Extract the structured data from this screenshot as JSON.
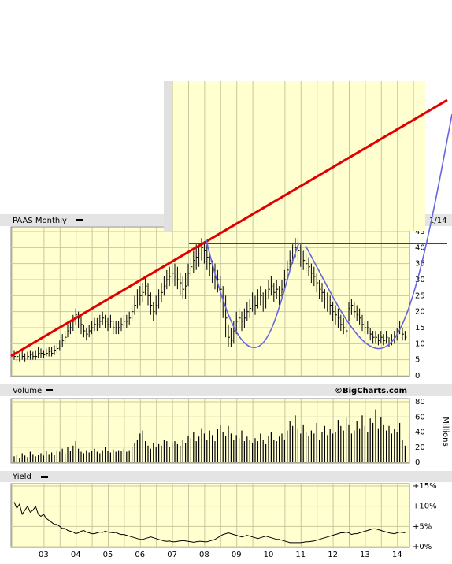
{
  "chart_data": [
    {
      "type": "ohlc",
      "title": "PAAS Monthly",
      "date_label": "1/14",
      "color": "#000000",
      "values": [
        6,
        6,
        5.5,
        6,
        5.5,
        6,
        6.5,
        6,
        6,
        7,
        7,
        6.5,
        7,
        7.5,
        7,
        8,
        8.5,
        9,
        11,
        12,
        14,
        15,
        17,
        19,
        18,
        16,
        14,
        13,
        14,
        15,
        16,
        16,
        17,
        18,
        17,
        16,
        17,
        15,
        15,
        15,
        16,
        17,
        17,
        18,
        20,
        22,
        24,
        25,
        26,
        28,
        25,
        22,
        20,
        22,
        24,
        26,
        28,
        30,
        31,
        32,
        31,
        30,
        29,
        27,
        28,
        32,
        34,
        36,
        37,
        38,
        40,
        39,
        37,
        35,
        33,
        31,
        30,
        27,
        24,
        18,
        12,
        11,
        14,
        17,
        18,
        17,
        18,
        20,
        21,
        23,
        22,
        24,
        25,
        23,
        24,
        27,
        28,
        26,
        27,
        25,
        27,
        30,
        33,
        36,
        38,
        40,
        39,
        38,
        36,
        35,
        34,
        32,
        31,
        29,
        27,
        26,
        24,
        23,
        22,
        20,
        19,
        18,
        16,
        15,
        14,
        21,
        22,
        20,
        19,
        18,
        16,
        15,
        15,
        13,
        12,
        12,
        11,
        12,
        11,
        12,
        10,
        11,
        12,
        13,
        15,
        13,
        12
      ],
      "high": [
        8,
        7.5,
        7,
        8,
        7,
        7.5,
        8,
        7.5,
        8,
        9,
        8.5,
        8,
        8.5,
        9,
        9,
        9.5,
        10,
        11,
        13,
        14,
        16,
        17,
        19,
        21,
        20,
        19,
        16,
        15,
        16,
        17,
        18,
        18,
        19,
        20,
        19,
        18,
        19,
        17,
        17,
        17,
        18,
        19,
        19,
        20,
        22,
        25,
        27,
        28,
        29,
        31,
        29,
        26,
        23,
        25,
        27,
        29,
        31,
        33,
        34,
        35,
        35,
        34,
        32,
        31,
        32,
        35,
        37,
        39,
        41,
        41,
        43,
        42,
        41,
        38,
        36,
        35,
        33,
        31,
        28,
        25,
        16,
        15,
        17,
        20,
        21,
        20,
        21,
        23,
        24,
        26,
        25,
        27,
        28,
        26,
        27,
        30,
        31,
        29,
        30,
        28,
        30,
        33,
        36,
        39,
        41,
        43,
        43,
        41,
        39,
        38,
        37,
        35,
        34,
        32,
        30,
        29,
        27,
        26,
        25,
        23,
        22,
        21,
        19,
        18,
        17,
        23,
        24,
        23,
        22,
        21,
        19,
        17,
        17,
        15,
        14,
        14,
        13,
        14,
        13,
        14,
        12,
        13,
        14,
        15,
        17,
        15,
        14
      ],
      "low": [
        5,
        4.5,
        4.5,
        5,
        4.5,
        5,
        5,
        5,
        5,
        5.5,
        5.5,
        5.5,
        6,
        6,
        6,
        6.5,
        7,
        8,
        9,
        10,
        12,
        13,
        14,
        16,
        15,
        13,
        12,
        11,
        12,
        13,
        14,
        14,
        15,
        16,
        15,
        14,
        15,
        13,
        13,
        13,
        14,
        15,
        15,
        16,
        17,
        19,
        21,
        22,
        23,
        25,
        22,
        19,
        17,
        19,
        21,
        23,
        25,
        27,
        28,
        29,
        28,
        27,
        25,
        24,
        24,
        28,
        31,
        32,
        33,
        34,
        36,
        35,
        33,
        31,
        29,
        27,
        26,
        23,
        18,
        12,
        9,
        9,
        10,
        13,
        15,
        14,
        15,
        17,
        18,
        20,
        19,
        21,
        22,
        20,
        21,
        24,
        25,
        23,
        24,
        22,
        24,
        27,
        30,
        33,
        35,
        37,
        36,
        34,
        33,
        32,
        31,
        29,
        28,
        26,
        24,
        23,
        21,
        20,
        19,
        17,
        16,
        15,
        14,
        13,
        12,
        17,
        19,
        18,
        17,
        16,
        14,
        13,
        13,
        11,
        10,
        10,
        9.5,
        10,
        9.5,
        10,
        9,
        9.5,
        10,
        11,
        13,
        11,
        11
      ],
      "ylim": [
        0,
        45
      ],
      "yticks": [
        0,
        5,
        10,
        15,
        20,
        25,
        30,
        35,
        40,
        45
      ],
      "grid": true
    },
    {
      "type": "bar",
      "title": "Volume",
      "annotation": "©BigCharts.com",
      "y_label": "Millions",
      "color": "#000000",
      "values": [
        8,
        10,
        6,
        12,
        9,
        7,
        14,
        11,
        8,
        10,
        12,
        9,
        15,
        11,
        13,
        10,
        16,
        14,
        18,
        12,
        20,
        15,
        22,
        28,
        18,
        14,
        12,
        16,
        13,
        15,
        18,
        14,
        12,
        16,
        20,
        15,
        13,
        17,
        14,
        16,
        15,
        18,
        14,
        16,
        20,
        25,
        30,
        38,
        42,
        28,
        22,
        18,
        25,
        20,
        24,
        22,
        30,
        28,
        20,
        25,
        28,
        24,
        22,
        30,
        26,
        35,
        32,
        40,
        28,
        34,
        45,
        38,
        30,
        42,
        36,
        28,
        44,
        50,
        40,
        35,
        48,
        38,
        30,
        36,
        32,
        42,
        28,
        34,
        30,
        26,
        32,
        28,
        38,
        30,
        24,
        35,
        40,
        30,
        28,
        34,
        38,
        30,
        42,
        55,
        48,
        62,
        45,
        38,
        50,
        40,
        35,
        42,
        38,
        52,
        30,
        40,
        48,
        36,
        44,
        38,
        40,
        56,
        48,
        42,
        60,
        50,
        38,
        42,
        55,
        45,
        62,
        48,
        40,
        58,
        52,
        70,
        45,
        60,
        50,
        42,
        48,
        38,
        44,
        40,
        52,
        30,
        22
      ],
      "ylim": [
        0,
        80
      ],
      "yticks": [
        0,
        20,
        40,
        60,
        80
      ],
      "grid": true
    },
    {
      "type": "line",
      "title": "Yield",
      "color": "#000000",
      "categories": [
        null,
        null,
        null,
        null,
        null,
        null,
        null,
        null,
        null,
        null,
        null,
        "03",
        null,
        null,
        null,
        null,
        null,
        null,
        null,
        null,
        null,
        null,
        null,
        "04",
        null,
        null,
        null,
        null,
        null,
        null,
        null,
        null,
        null,
        null,
        null,
        "05",
        null,
        null,
        null,
        null,
        null,
        null,
        null,
        null,
        null,
        null,
        null,
        "06",
        null,
        null,
        null,
        null,
        null,
        null,
        null,
        null,
        null,
        null,
        null,
        "07",
        null,
        null,
        null,
        null,
        null,
        null,
        null,
        null,
        null,
        null,
        null,
        "08",
        null,
        null,
        null,
        null,
        null,
        null,
        null,
        null,
        null,
        null,
        null,
        "09",
        null,
        null,
        null,
        null,
        null,
        null,
        null,
        null,
        null,
        null,
        null,
        "10",
        null,
        null,
        null,
        null,
        null,
        null,
        null,
        null,
        null,
        null,
        null,
        "11",
        null,
        null,
        null,
        null,
        null,
        null,
        null,
        null,
        null,
        null,
        null,
        "12",
        null,
        null,
        null,
        null,
        null,
        null,
        null,
        null,
        null,
        null,
        null,
        "13",
        null,
        null,
        null,
        null,
        null,
        null,
        null,
        null,
        null,
        null,
        null,
        "14",
        null,
        null,
        null
      ],
      "values": [
        11,
        9.5,
        10.5,
        8,
        9,
        10,
        8.5,
        9,
        10,
        8,
        7.5,
        8,
        7,
        6.5,
        6,
        5.5,
        5.5,
        5,
        4.5,
        4.5,
        4,
        3.8,
        3.6,
        3.2,
        3.4,
        3.8,
        4,
        3.6,
        3.4,
        3.2,
        3.2,
        3.4,
        3.6,
        3.5,
        3.8,
        3.6,
        3.5,
        3.4,
        3.5,
        3.2,
        3,
        3,
        2.8,
        2.6,
        2.4,
        2.2,
        2,
        1.8,
        1.8,
        2,
        2.2,
        2.4,
        2.2,
        2,
        1.8,
        1.6,
        1.4,
        1.3,
        1.4,
        1.2,
        1.2,
        1.3,
        1.4,
        1.5,
        1.4,
        1.3,
        1.2,
        1.1,
        1.2,
        1.3,
        1.3,
        1.2,
        1.2,
        1.4,
        1.6,
        1.8,
        2.2,
        2.6,
        3,
        3.2,
        3.4,
        3.2,
        3,
        2.8,
        2.6,
        2.4,
        2.6,
        2.8,
        2.6,
        2.4,
        2.2,
        2,
        2.2,
        2.4,
        2.6,
        2.4,
        2.2,
        2,
        1.8,
        1.8,
        1.6,
        1.4,
        1.2,
        1,
        1,
        1,
        1,
        1,
        1.1,
        1.2,
        1.2,
        1.3,
        1.4,
        1.6,
        1.8,
        2,
        2.2,
        2.4,
        2.6,
        2.8,
        3,
        3.2,
        3.4,
        3.4,
        3.6,
        3.4,
        3,
        3.2,
        3.2,
        3.4,
        3.6,
        3.8,
        4,
        4.2,
        4.4,
        4.4,
        4.2,
        4,
        3.8,
        3.6,
        3.4,
        3.3,
        3.2,
        3.4,
        3.6,
        3.5,
        3.4
      ],
      "ylim": [
        0,
        15
      ],
      "yticks": [
        {
          "value": 0,
          "label": "+0%"
        },
        {
          "value": 5,
          "label": "+5%"
        },
        {
          "value": 10,
          "label": "+10%"
        },
        {
          "value": 15,
          "label": "+15%"
        }
      ],
      "grid": true
    }
  ]
}
